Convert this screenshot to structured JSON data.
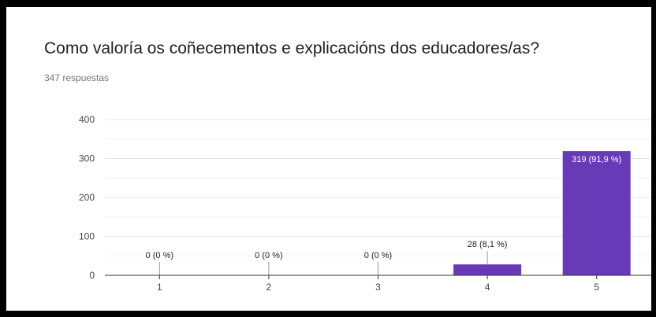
{
  "question": {
    "title": "Como valoría os coñecementos e explicacións dos educadores/as?",
    "response_count": "347 respuestas"
  },
  "colors": {
    "bar": "#673ab7",
    "grid": "#e6e6e6",
    "axis": "#333333",
    "label_dark": "#222222",
    "label_light": "#ffffff"
  },
  "chart_data": {
    "type": "bar",
    "title": "",
    "xlabel": "",
    "ylabel": "",
    "categories": [
      "1",
      "2",
      "3",
      "4",
      "5"
    ],
    "values": [
      0,
      0,
      0,
      28,
      319
    ],
    "data_labels": [
      "0 (0 %)",
      "0 (0 %)",
      "0 (0 %)",
      "28 (8,1 %)",
      "319 (91,9 %)"
    ],
    "ylim": [
      0,
      400
    ],
    "yticks": [
      0,
      100,
      200,
      300,
      400
    ],
    "grid": true,
    "legend": "none"
  }
}
